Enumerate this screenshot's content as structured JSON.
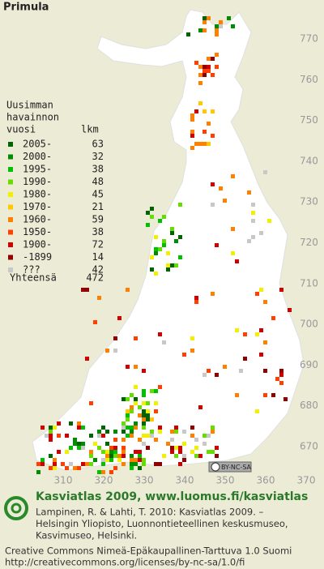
{
  "title": "Primula",
  "legend": {
    "header": [
      "Uusimman",
      "havainnon",
      "vuosi"
    ],
    "count_header": "lkm",
    "items": [
      {
        "label": "2005-",
        "count": 63,
        "color": "#006400"
      },
      {
        "label": "2000-",
        "count": 32,
        "color": "#008c00"
      },
      {
        "label": "1995-",
        "count": 38,
        "color": "#00c000"
      },
      {
        "label": "1990-",
        "count": 48,
        "color": "#66dd00"
      },
      {
        "label": "1980-",
        "count": 45,
        "color": "#f0f000"
      },
      {
        "label": "1970-",
        "count": 21,
        "color": "#ffc800"
      },
      {
        "label": "1960-",
        "count": 59,
        "color": "#ff8000"
      },
      {
        "label": "1950-",
        "count": 38,
        "color": "#ff4000"
      },
      {
        "label": "1900-",
        "count": 72,
        "color": "#d00000"
      },
      {
        "label": "-1899",
        "count": 14,
        "color": "#900000"
      },
      {
        "label": "???",
        "count": 42,
        "color": "#c8c8c8"
      }
    ],
    "total_label": "Yhteensä",
    "total": 472
  },
  "axes": {
    "yticks": [
      770,
      760,
      750,
      740,
      730,
      720,
      710,
      700,
      690,
      680,
      670
    ],
    "xticks": [
      310,
      320,
      330,
      340,
      350,
      360,
      370
    ]
  },
  "license_badge": "BY-NC-SA",
  "footer": {
    "heading": "Kasviatlas 2009, www.luomus.fi/kasviatlas",
    "citation": [
      "Lampinen, R. & Lahti, T. 2010: Kasviatlas 2009. –",
      "Helsingin Yliopisto, Luonnontieteellinen keskusmuseo,",
      "Kasvimuseo, Helsinki."
    ],
    "license": [
      "Creative Commons Nimeä-Epäkaupallinen-Tarttuva 1.0 Suomi",
      "http://creativecommons.org/licenses/by-nc-sa/1.0/fi"
    ]
  }
}
